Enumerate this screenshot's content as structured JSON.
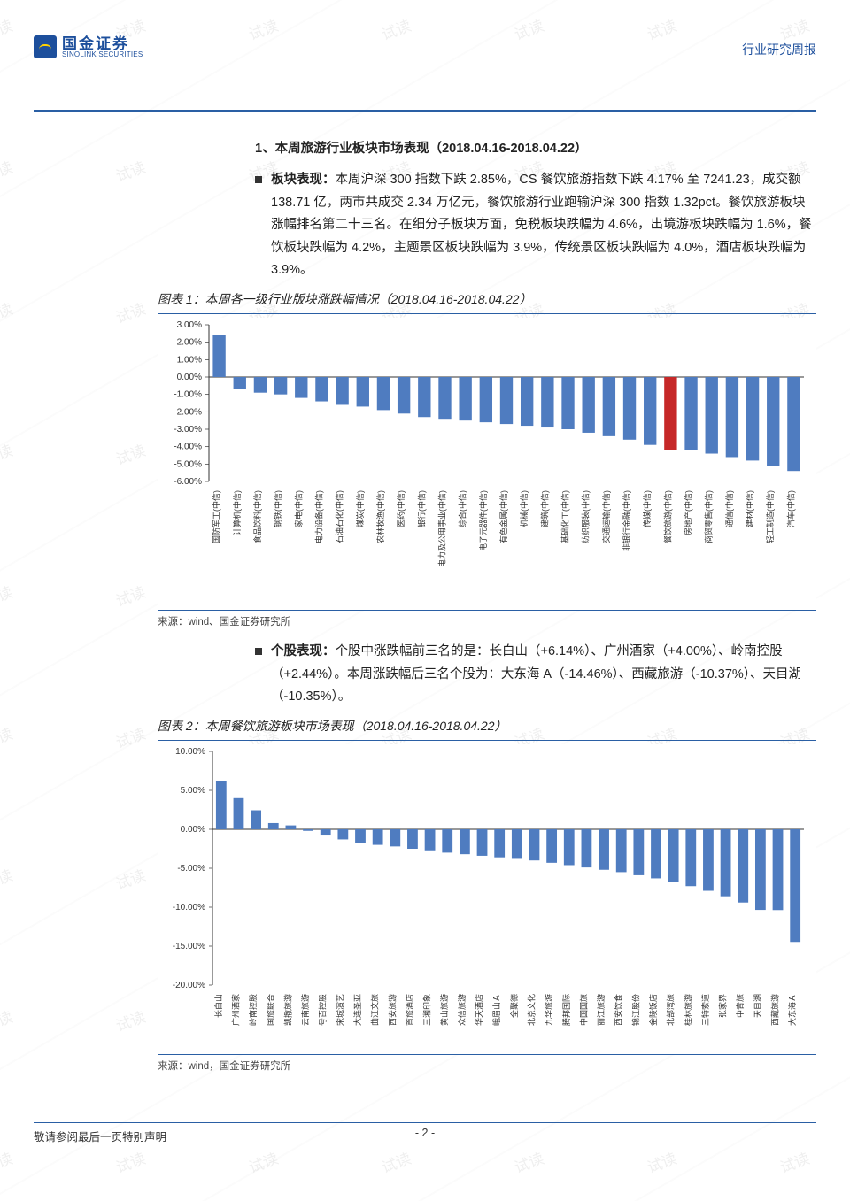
{
  "header": {
    "logo_cn": "国金证券",
    "logo_en": "SINOLINK SECURITIES",
    "doc_type": "行业研究周报"
  },
  "section1": {
    "title": "1、本周旅游行业板块市场表现（2018.04.16-2018.04.22）",
    "bullet_label": "板块表现：",
    "bullet_body": "本周沪深 300 指数下跌 2.85%，CS 餐饮旅游指数下跌 4.17% 至 7241.23，成交额 138.71 亿，两市共成交 2.34 万亿元，餐饮旅游行业跑输沪深 300 指数 1.32pct。餐饮旅游板块涨幅排名第二十三名。在细分子板块方面，免税板块跌幅为 4.6%，出境游板块跌幅为 1.6%，餐饮板块跌幅为 4.2%，主题景区板块跌幅为 3.9%，传统景区板块跌幅为 4.0%，酒店板块跌幅为 3.9%。"
  },
  "figure1": {
    "caption": "图表 1：本周各一级行业版块涨跌幅情况（2018.04.16-2018.04.22）",
    "source": "来源：wind、国金证券研究所",
    "ylim": [
      -6,
      3
    ],
    "ytick_step": 1,
    "ylabel_format_pct": 2,
    "highlight_idx": 22,
    "bar_color": "#4f7cc0",
    "highlight_color": "#c62828",
    "axis_color": "#333333",
    "categories": [
      "国防军工(中信)",
      "计算机(中信)",
      "食品饮料(中信)",
      "钢铁(中信)",
      "家电(中信)",
      "电力设备(中信)",
      "石油石化(中信)",
      "煤炭(中信)",
      "农林牧渔(中信)",
      "医药(中信)",
      "银行(中信)",
      "电力及公用事业(中信)",
      "综合(中信)",
      "电子元器件(中信)",
      "有色金属(中信)",
      "机械(中信)",
      "建筑(中信)",
      "基础化工(中信)",
      "纺织服装(中信)",
      "交通运输(中信)",
      "非银行金融(中信)",
      "传媒(中信)",
      "餐饮旅游(中信)",
      "房地产(中信)",
      "商贸零售(中信)",
      "通信(中信)",
      "建材(中信)",
      "轻工制造(中信)",
      "汽车(中信)"
    ],
    "values": [
      2.4,
      -0.7,
      -0.9,
      -1.0,
      -1.2,
      -1.4,
      -1.6,
      -1.7,
      -1.9,
      -2.1,
      -2.3,
      -2.4,
      -2.5,
      -2.6,
      -2.7,
      -2.8,
      -2.9,
      -3.0,
      -3.2,
      -3.4,
      -3.6,
      -3.9,
      -4.17,
      -4.2,
      -4.4,
      -4.6,
      -4.8,
      -5.1,
      -5.4
    ]
  },
  "section2": {
    "bullet_label": "个股表现：",
    "bullet_body": "个股中涨跌幅前三名的是：长白山（+6.14%）、广州酒家（+4.00%）、岭南控股（+2.44%）。本周涨跌幅后三名个股为：大东海 A（-14.46%）、西藏旅游（-10.37%）、天目湖（-10.35%）。"
  },
  "figure2": {
    "caption": "图表 2：本周餐饮旅游板块市场表现（2018.04.16-2018.04.22）",
    "source": "来源：wind，国金证券研究所",
    "ylim": [
      -20,
      10
    ],
    "ytick_step": 5,
    "ylabel_format_pct": 2,
    "bar_color": "#4f7cc0",
    "axis_color": "#333333",
    "categories": [
      "长白山",
      "广州酒家",
      "岭南控股",
      "国旅联合",
      "凯撒旅游",
      "云南旅游",
      "号百控股",
      "宋城演艺",
      "大连圣亚",
      "曲江文旅",
      "西安旅游",
      "首旅酒店",
      "三湘印象",
      "黄山旅游",
      "众信旅游",
      "华天酒店",
      "峨眉山Ａ",
      "全聚德",
      "北京文化",
      "九华旅游",
      "腾邦国际",
      "中国国旅",
      "丽江旅游",
      "西安饮食",
      "锦江股份",
      "金陵饭店",
      "北部湾旅",
      "桂林旅游",
      "三特索道",
      "张家界",
      "中青旅",
      "天目湖",
      "西藏旅游",
      "大东海Ａ"
    ],
    "values": [
      6.14,
      4.0,
      2.44,
      0.8,
      0.5,
      -0.2,
      -0.8,
      -1.3,
      -1.8,
      -2.0,
      -2.2,
      -2.5,
      -2.7,
      -3.0,
      -3.2,
      -3.4,
      -3.6,
      -3.8,
      -4.0,
      -4.3,
      -4.6,
      -4.9,
      -5.2,
      -5.5,
      -5.9,
      -6.3,
      -6.8,
      -7.3,
      -7.9,
      -8.6,
      -9.4,
      -10.35,
      -10.37,
      -14.46
    ]
  },
  "footer": {
    "page_num": "- 2 -",
    "disclaimer": "敬请参阅最后一页特别声明"
  },
  "watermark_text": "试读"
}
